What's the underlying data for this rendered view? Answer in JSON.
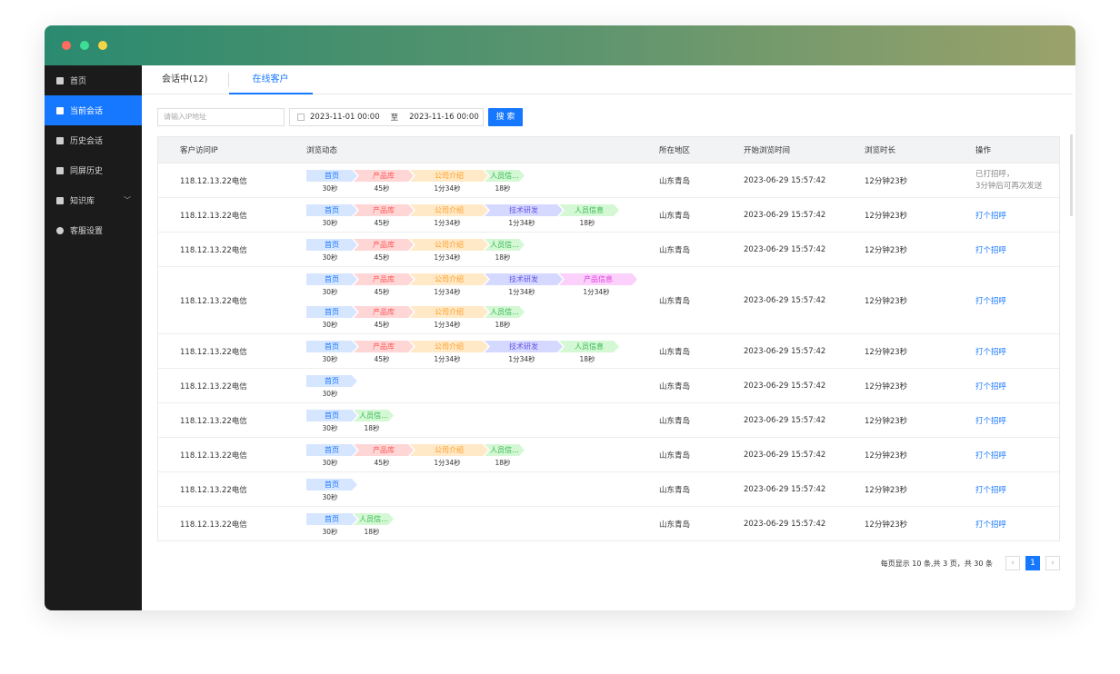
{
  "window": {
    "controls": [
      {
        "name": "close",
        "color": "#ff6b5e"
      },
      {
        "name": "minimize",
        "color": "#3ddc97"
      },
      {
        "name": "maximize",
        "color": "#f5d547"
      }
    ]
  },
  "sidebar": {
    "items": [
      {
        "label": "首页",
        "icon": "home-icon"
      },
      {
        "label": "当前会话",
        "icon": "chat-icon",
        "active": true
      },
      {
        "label": "历史会话",
        "icon": "history-icon"
      },
      {
        "label": "同屏历史",
        "icon": "screen-history-icon"
      },
      {
        "label": "知识库",
        "icon": "book-icon",
        "expandable": true
      },
      {
        "label": "客服设置",
        "icon": "settings-icon"
      }
    ]
  },
  "tabs": [
    {
      "label": "会话中(12)"
    },
    {
      "label": "在线客户",
      "active": true
    }
  ],
  "filters": {
    "ip_placeholder": "请输入IP地址",
    "start": "2023-11-01 00:00",
    "separator": "至",
    "end": "2023-11-16 00:00",
    "search_label": "搜 索"
  },
  "table": {
    "headers": [
      "客户访问IP",
      "浏览动态",
      "所在地区",
      "开始浏览时间",
      "浏览时长",
      "操作"
    ],
    "step_styles": {
      "首页": {
        "bg": "#d6e6ff",
        "fg": "#1677ff"
      },
      "产品库": {
        "bg": "#ffd6d6",
        "fg": "#ff5a5a"
      },
      "公司介绍": {
        "bg": "#ffe9c7",
        "fg": "#ff9a1f"
      },
      "技术研发": {
        "bg": "#d5d9ff",
        "fg": "#6b55e8"
      },
      "产品信息": {
        "bg": "#fbd0fb",
        "fg": "#e040e0"
      },
      "人员信息": {
        "bg": "#d4f7d4",
        "fg": "#2fb84f"
      }
    },
    "rows": [
      {
        "ip": "118.12.13.22电信",
        "region": "山东青岛",
        "start": "2023-06-29 15:57:42",
        "duration": "12分钟23秒",
        "action": "已打招呼，\n3分钟后可再次发送",
        "action_done": true,
        "lines": [
          [
            [
              "首页",
              "30秒"
            ],
            [
              "产品库",
              "45秒"
            ],
            [
              "公司介绍",
              "1分34秒"
            ],
            [
              "人员信...",
              "18秒",
              "人员信息"
            ]
          ]
        ]
      },
      {
        "ip": "118.12.13.22电信",
        "region": "山东青岛",
        "start": "2023-06-29 15:57:42",
        "duration": "12分钟23秒",
        "action": "打个招呼",
        "lines": [
          [
            [
              "首页",
              "30秒"
            ],
            [
              "产品库",
              "45秒"
            ],
            [
              "公司介绍",
              "1分34秒"
            ],
            [
              "技术研发",
              "1分34秒"
            ],
            [
              "人员信息",
              "18秒"
            ]
          ]
        ]
      },
      {
        "ip": "118.12.13.22电信",
        "region": "山东青岛",
        "start": "2023-06-29 15:57:42",
        "duration": "12分钟23秒",
        "action": "打个招呼",
        "lines": [
          [
            [
              "首页",
              "30秒"
            ],
            [
              "产品库",
              "45秒"
            ],
            [
              "公司介绍",
              "1分34秒"
            ],
            [
              "人员信...",
              "18秒",
              "人员信息"
            ]
          ]
        ]
      },
      {
        "ip": "118.12.13.22电信",
        "region": "山东青岛",
        "start": "2023-06-29 15:57:42",
        "duration": "12分钟23秒",
        "action": "打个招呼",
        "lines": [
          [
            [
              "首页",
              "30秒"
            ],
            [
              "产品库",
              "45秒"
            ],
            [
              "公司介绍",
              "1分34秒"
            ],
            [
              "技术研发",
              "1分34秒"
            ],
            [
              "产品信息",
              "1分34秒"
            ]
          ],
          [
            [
              "首页",
              "30秒"
            ],
            [
              "产品库",
              "45秒"
            ],
            [
              "公司介绍",
              "1分34秒"
            ],
            [
              "人员信...",
              "18秒",
              "人员信息"
            ]
          ]
        ]
      },
      {
        "ip": "118.12.13.22电信",
        "region": "山东青岛",
        "start": "2023-06-29 15:57:42",
        "duration": "12分钟23秒",
        "action": "打个招呼",
        "lines": [
          [
            [
              "首页",
              "30秒"
            ],
            [
              "产品库",
              "45秒"
            ],
            [
              "公司介绍",
              "1分34秒"
            ],
            [
              "技术研发",
              "1分34秒"
            ],
            [
              "人员信息",
              "18秒"
            ]
          ]
        ]
      },
      {
        "ip": "118.12.13.22电信",
        "region": "山东青岛",
        "start": "2023-06-29 15:57:42",
        "duration": "12分钟23秒",
        "action": "打个招呼",
        "lines": [
          [
            [
              "首页",
              "30秒"
            ]
          ]
        ]
      },
      {
        "ip": "118.12.13.22电信",
        "region": "山东青岛",
        "start": "2023-06-29 15:57:42",
        "duration": "12分钟23秒",
        "action": "打个招呼",
        "lines": [
          [
            [
              "首页",
              "30秒"
            ],
            [
              "人员信...",
              "18秒",
              "人员信息"
            ]
          ]
        ]
      },
      {
        "ip": "118.12.13.22电信",
        "region": "山东青岛",
        "start": "2023-06-29 15:57:42",
        "duration": "12分钟23秒",
        "action": "打个招呼",
        "lines": [
          [
            [
              "首页",
              "30秒"
            ],
            [
              "产品库",
              "45秒"
            ],
            [
              "公司介绍",
              "1分34秒"
            ],
            [
              "人员信...",
              "18秒",
              "人员信息"
            ]
          ]
        ]
      },
      {
        "ip": "118.12.13.22电信",
        "region": "山东青岛",
        "start": "2023-06-29 15:57:42",
        "duration": "12分钟23秒",
        "action": "打个招呼",
        "lines": [
          [
            [
              "首页",
              "30秒"
            ]
          ]
        ]
      },
      {
        "ip": "118.12.13.22电信",
        "region": "山东青岛",
        "start": "2023-06-29 15:57:42",
        "duration": "12分钟23秒",
        "action": "打个招呼",
        "lines": [
          [
            [
              "首页",
              "30秒"
            ],
            [
              "人员信...",
              "18秒",
              "人员信息"
            ]
          ]
        ]
      }
    ]
  },
  "pagination": {
    "summary": "每页显示 10 条,共 3 页，共 30 条",
    "prev": "‹",
    "current": "1",
    "next": "›"
  }
}
